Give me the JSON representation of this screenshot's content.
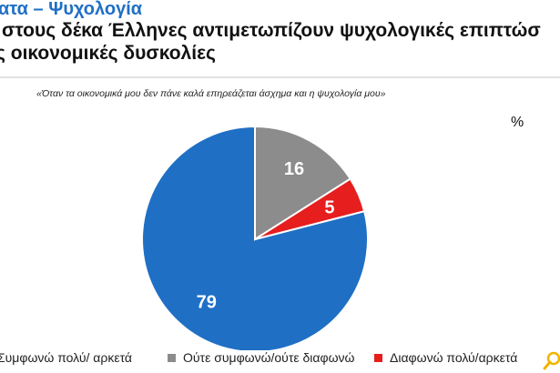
{
  "header": {
    "line1": "ατα – Ψυχολογία",
    "line2": "στους δέκα Έλληνες αντιμετωπίζουν ψυχολογικές επιπτώσ",
    "line3": "ς οικονομικές δυσκολίες"
  },
  "chart_data": {
    "type": "pie",
    "title": "«Όταν τα οικονομικά μου δεν πάνε καλά επηρεάζεται άσχημα και η ψυχολογία μου»",
    "unit": "%",
    "slices": [
      {
        "label": "Συμφωνώ πολύ/ αρκετά",
        "value": 79,
        "color": "#1f6fc5"
      },
      {
        "label": "Ούτε συμφωνώ/ούτε διαφωνώ",
        "value": 16,
        "color": "#8c8c8c"
      },
      {
        "label": "Διαφωνώ πολύ/αρκετά",
        "value": 5,
        "color": "#e61e1e"
      }
    ],
    "legend_position": "bottom"
  },
  "icons": {
    "corner": "magnifier-logo-icon"
  }
}
